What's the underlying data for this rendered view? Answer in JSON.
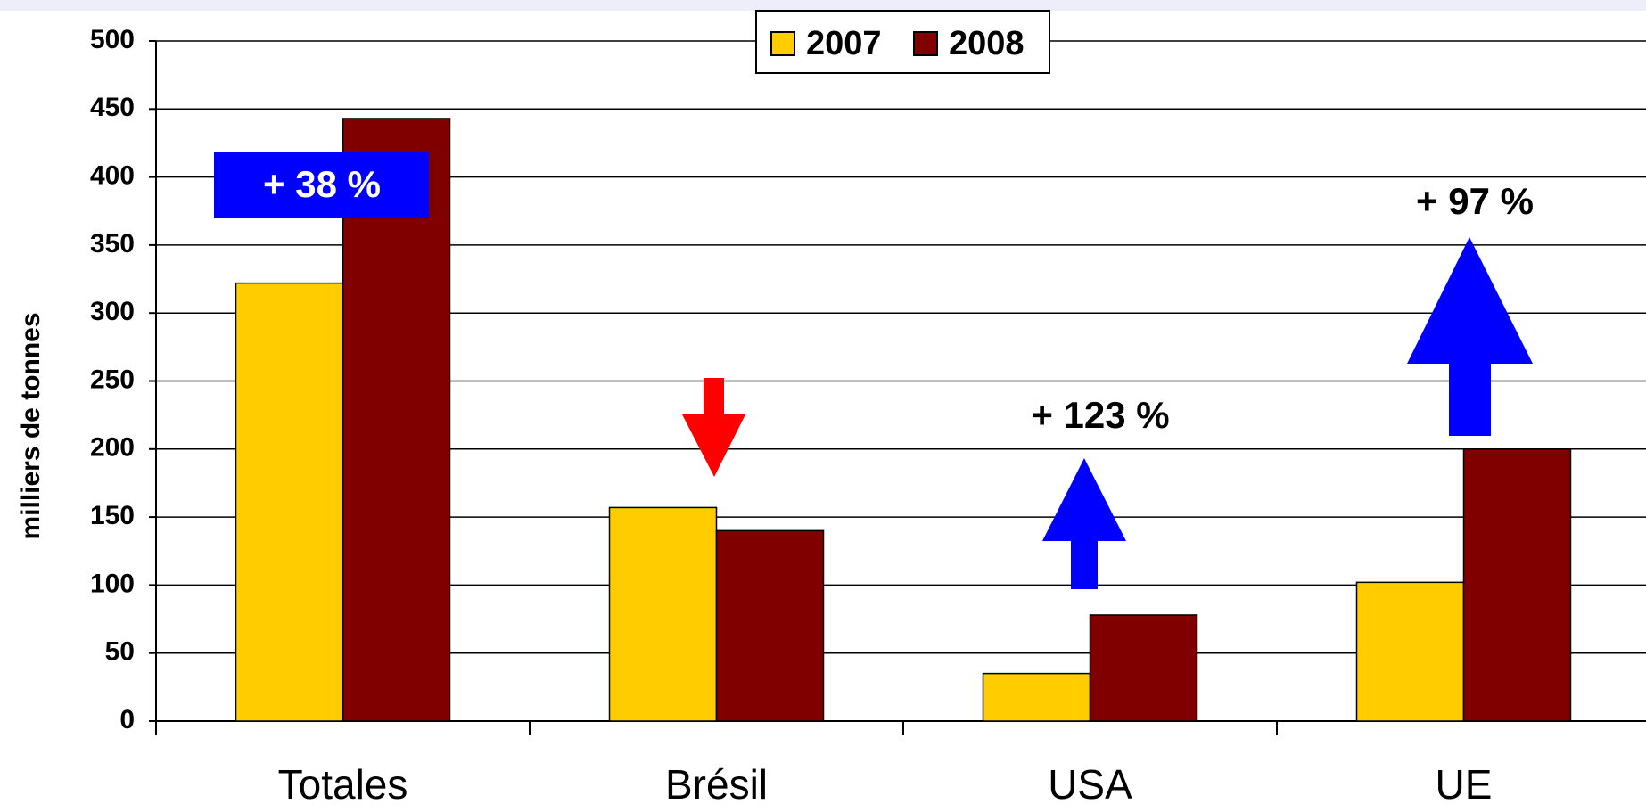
{
  "chart_data": {
    "type": "bar",
    "y_label": "milliers de tonnes",
    "categories": [
      "Totales",
      "Brésil",
      "USA",
      "UE"
    ],
    "series": [
      {
        "name": "2007",
        "color": "#ffcc00",
        "values": [
          322,
          157,
          35,
          102
        ]
      },
      {
        "name": "2008",
        "color": "#800000",
        "values": [
          443,
          140,
          78,
          200
        ]
      }
    ],
    "ylim": [
      0,
      500
    ],
    "yticks": [
      0,
      50,
      100,
      150,
      200,
      250,
      300,
      350,
      400,
      450,
      500
    ],
    "grid": true,
    "legend": "top",
    "annotations": [
      "+ 38 %",
      "+ 123 %",
      "+ 97 %"
    ]
  }
}
